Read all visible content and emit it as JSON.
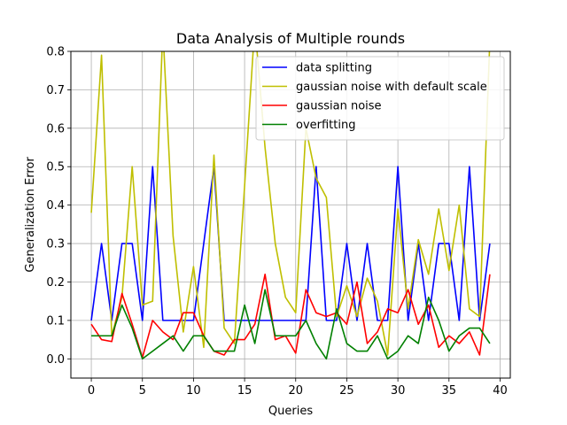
{
  "chart_data": {
    "type": "line",
    "title": "Data Analysis of Multiple rounds",
    "xlabel": "Queries",
    "ylabel": "Generalization Error",
    "xlim": [
      -2,
      41
    ],
    "ylim": [
      -0.05,
      0.8
    ],
    "xticks": [
      0,
      5,
      10,
      15,
      20,
      25,
      30,
      35,
      40
    ],
    "yticks": [
      0.0,
      0.1,
      0.2,
      0.3,
      0.4,
      0.5,
      0.6,
      0.7,
      0.8
    ],
    "ytick_labels": [
      "0.0",
      "0.1",
      "0.2",
      "0.3",
      "0.4",
      "0.5",
      "0.6",
      "0.7",
      "0.8"
    ],
    "grid": true,
    "legend_position": "top-right",
    "x": [
      0,
      1,
      2,
      3,
      4,
      5,
      6,
      7,
      8,
      9,
      10,
      11,
      12,
      13,
      14,
      15,
      16,
      17,
      18,
      19,
      20,
      21,
      22,
      23,
      24,
      25,
      26,
      27,
      28,
      29,
      30,
      31,
      32,
      33,
      34,
      35,
      36,
      37,
      38,
      39
    ],
    "series": [
      {
        "name": "data splitting",
        "color": "#0000ff",
        "values": [
          0.1,
          0.3,
          0.1,
          0.3,
          0.3,
          0.1,
          0.5,
          0.1,
          0.1,
          0.1,
          0.1,
          0.3,
          0.5,
          0.1,
          0.1,
          0.1,
          0.1,
          0.1,
          0.1,
          0.1,
          0.1,
          0.1,
          0.5,
          0.1,
          0.1,
          0.3,
          0.1,
          0.3,
          0.1,
          0.1,
          0.5,
          0.1,
          0.3,
          0.1,
          0.3,
          0.3,
          0.1,
          0.5,
          0.1,
          0.3
        ]
      },
      {
        "name": "gaussian noise with default scale",
        "color": "#bfbf00",
        "values": [
          0.38,
          0.79,
          0.06,
          0.16,
          0.5,
          0.14,
          0.15,
          0.86,
          0.32,
          0.07,
          0.24,
          0.03,
          0.53,
          0.08,
          0.04,
          0.45,
          0.87,
          0.55,
          0.3,
          0.16,
          0.12,
          0.6,
          0.47,
          0.42,
          0.11,
          0.19,
          0.11,
          0.21,
          0.15,
          0.01,
          0.39,
          0.13,
          0.31,
          0.22,
          0.39,
          0.23,
          0.4,
          0.13,
          0.11,
          0.83
        ]
      },
      {
        "name": "gaussian noise",
        "color": "#ff0000",
        "values": [
          0.09,
          0.05,
          0.045,
          0.17,
          0.09,
          0.003,
          0.1,
          0.07,
          0.05,
          0.12,
          0.12,
          0.06,
          0.02,
          0.01,
          0.05,
          0.05,
          0.09,
          0.22,
          0.05,
          0.06,
          0.015,
          0.18,
          0.12,
          0.11,
          0.12,
          0.09,
          0.2,
          0.04,
          0.07,
          0.13,
          0.12,
          0.18,
          0.09,
          0.14,
          0.03,
          0.06,
          0.04,
          0.07,
          0.01,
          0.22
        ]
      },
      {
        "name": "overfitting",
        "color": "#008000",
        "values": [
          0.06,
          0.06,
          0.06,
          0.14,
          0.08,
          0.0,
          0.02,
          0.04,
          0.06,
          0.02,
          0.06,
          0.06,
          0.02,
          0.02,
          0.02,
          0.14,
          0.04,
          0.18,
          0.06,
          0.06,
          0.06,
          0.1,
          0.04,
          0.0,
          0.13,
          0.04,
          0.02,
          0.02,
          0.06,
          0.0,
          0.02,
          0.06,
          0.04,
          0.16,
          0.1,
          0.02,
          0.06,
          0.08,
          0.08,
          0.04
        ]
      }
    ]
  }
}
